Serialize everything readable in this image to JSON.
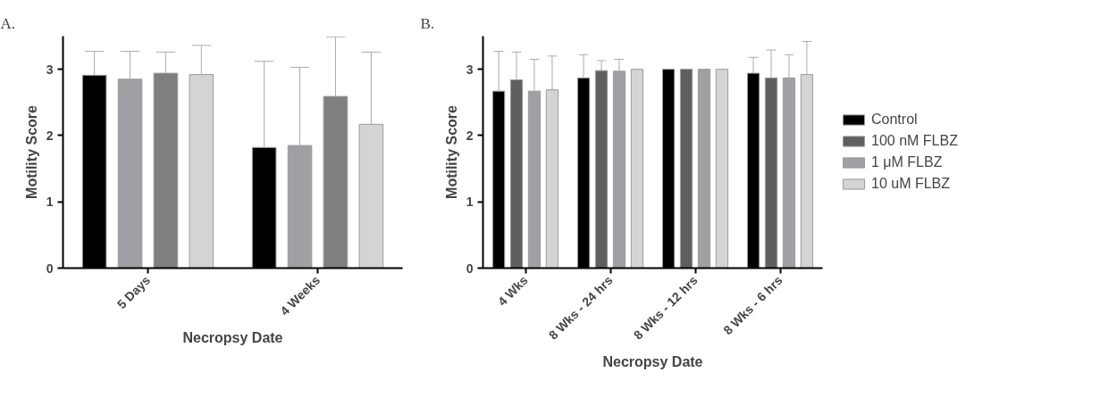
{
  "chart_data": [
    {
      "type": "bar",
      "title": "A.",
      "xlabel": "Necropsy Date",
      "ylabel": "Motility Score",
      "categories": [
        "5 Days",
        "4 Weeks"
      ],
      "ylim": [
        0,
        3.5
      ],
      "yticks": [
        0,
        1,
        2,
        3
      ],
      "grid": false,
      "legend": false,
      "series": [
        {
          "color": "#000000",
          "values": [
            2.91,
            1.82
          ],
          "errors": [
            [
              2.91,
              3.27
            ],
            [
              1.82,
              3.12
            ]
          ]
        },
        {
          "color": "#a0a0a4",
          "values": [
            2.85,
            1.85
          ],
          "errors": [
            [
              2.85,
              3.27
            ],
            [
              1.85,
              3.03
            ]
          ]
        },
        {
          "color": "#7f7f7f",
          "values": [
            2.94,
            2.59
          ],
          "errors": [
            [
              2.94,
              3.26
            ],
            [
              2.59,
              3.49
            ]
          ]
        },
        {
          "color": "#d4d4d4",
          "values": [
            2.92,
            2.17
          ],
          "errors": [
            [
              2.92,
              3.36
            ],
            [
              2.17,
              3.26
            ]
          ]
        }
      ]
    },
    {
      "type": "bar",
      "title": "B.",
      "xlabel": "Necropsy Date",
      "ylabel": "Motility Score",
      "categories": [
        "4 Wks",
        "8 Wks - 24 hrs",
        "8 Wks - 12 hrs",
        "8 Wks - 6 hrs"
      ],
      "ylim": [
        0,
        3.5
      ],
      "yticks": [
        0,
        1,
        2,
        3
      ],
      "grid": false,
      "legend": "right",
      "series": [
        {
          "name": "Control",
          "color": "#000000",
          "values": [
            2.67,
            2.87,
            3.0,
            2.94
          ],
          "errors": [
            [
              2.67,
              3.27
            ],
            [
              2.87,
              3.22
            ],
            null,
            [
              2.94,
              3.18
            ]
          ]
        },
        {
          "name": "100 nM FLBZ",
          "color": "#5f5f5f",
          "values": [
            2.84,
            2.98,
            3.0,
            2.87
          ],
          "errors": [
            [
              2.84,
              3.26
            ],
            [
              2.98,
              3.13
            ],
            null,
            [
              2.87,
              3.29
            ]
          ]
        },
        {
          "name": "1 μM FLBZ",
          "color": "#a0a0a4",
          "values": [
            2.67,
            2.97,
            3.0,
            2.87
          ],
          "errors": [
            [
              2.67,
              3.15
            ],
            [
              2.97,
              3.15
            ],
            null,
            [
              2.87,
              3.22
            ]
          ]
        },
        {
          "name": "10 uM FLBZ",
          "color": "#d4d4d4",
          "values": [
            2.69,
            3.0,
            3.0,
            2.92
          ],
          "errors": [
            [
              2.69,
              3.2
            ],
            null,
            null,
            [
              2.92,
              3.42
            ]
          ]
        }
      ]
    }
  ]
}
